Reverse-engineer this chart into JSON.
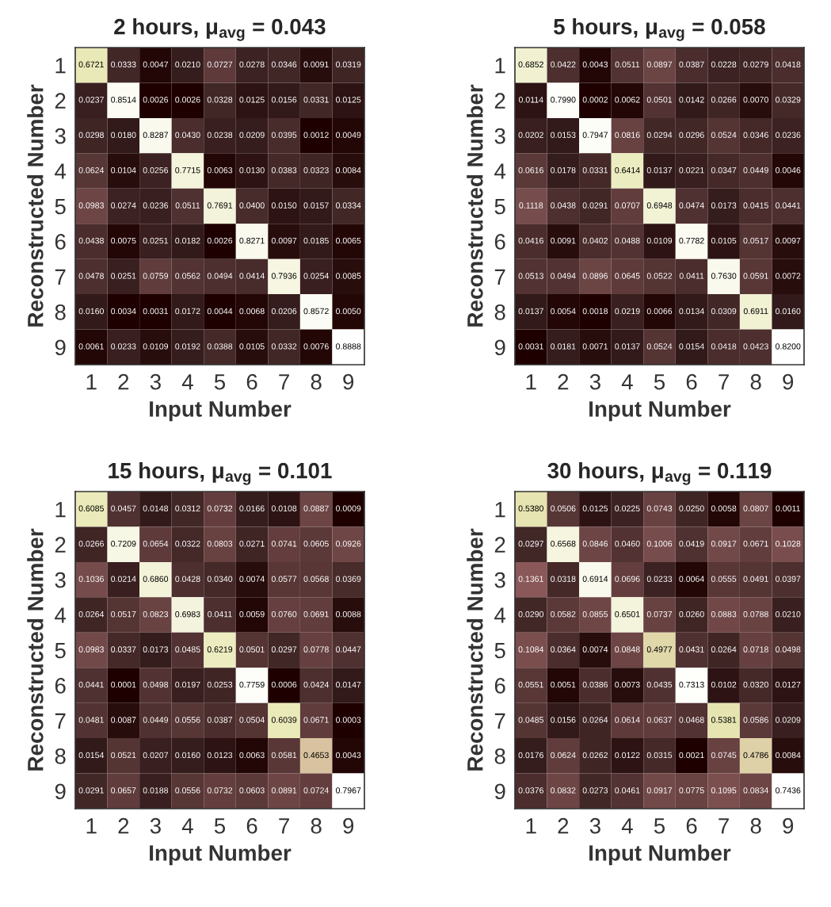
{
  "chart_data": [
    {
      "type": "heatmap",
      "title": "2 hours, μ$_{avg}$ = 0.043",
      "xlabel": "Input Number",
      "ylabel": "Reconstructed Number",
      "categories": [
        "1",
        "2",
        "3",
        "4",
        "5",
        "6",
        "7",
        "8",
        "9"
      ],
      "y_categories": [
        "1",
        "2",
        "3",
        "4",
        "5",
        "6",
        "7",
        "8",
        "9"
      ],
      "data_labels": true,
      "cells": [
        [
          0.6721,
          0.0333,
          0.0047,
          0.021,
          0.0727,
          0.0278,
          0.0346,
          0.0091,
          0.0319
        ],
        [
          0.0237,
          0.8514,
          0.0026,
          0.0026,
          0.0328,
          0.0125,
          0.0156,
          0.0331,
          0.0125
        ],
        [
          0.0298,
          0.018,
          0.8287,
          0.043,
          0.0238,
          0.0209,
          0.0395,
          0.0012,
          0.0049
        ],
        [
          0.0624,
          0.0104,
          0.0256,
          0.7715,
          0.0063,
          0.013,
          0.0383,
          0.0323,
          0.0084
        ],
        [
          0.0983,
          0.0274,
          0.0236,
          0.0511,
          0.7691,
          0.04,
          0.015,
          0.0157,
          0.0334
        ],
        [
          0.0438,
          0.0075,
          0.0251,
          0.0182,
          0.0026,
          0.8271,
          0.0097,
          0.0185,
          0.0065
        ],
        [
          0.0478,
          0.0251,
          0.0759,
          0.0562,
          0.0494,
          0.0414,
          0.7936,
          0.0254,
          0.0085
        ],
        [
          0.016,
          0.0034,
          0.0031,
          0.0172,
          0.0044,
          0.0068,
          0.0206,
          0.8572,
          0.005
        ],
        [
          0.0061,
          0.0233,
          0.0109,
          0.0192,
          0.0388,
          0.0105,
          0.0332,
          0.0076,
          0.8888
        ]
      ],
      "cell_labels": [
        [
          "0.6721",
          "0.0333",
          "0.0047",
          "0.0210",
          "0.0727",
          "0.0278",
          "0.0346",
          "0.0091",
          "0.0319"
        ],
        [
          "0.0237",
          "0.8514",
          "0.0026",
          "0.0026",
          "0.0328",
          "0.0125",
          "0.0156",
          "0.0331",
          "0.0125"
        ],
        [
          "0.0298",
          "0.0180",
          "0.8287",
          "0.0430",
          "0.0238",
          "0.0209",
          "0.0395",
          "0.0012",
          "0.0049"
        ],
        [
          "0.0624",
          "0.0104",
          "0.0256",
          "0.7715",
          "0.0063",
          "0.0130",
          "0.0383",
          "0.0323",
          "0.0084"
        ],
        [
          "0.0983",
          "0.0274",
          "0.0236",
          "0.0511",
          "0.7691",
          "0.0400",
          "0.0150",
          "0.0157",
          "0.0334"
        ],
        [
          "0.0438",
          "0.0075",
          "0.0251",
          "0.0182",
          "0.0026",
          "0.8271",
          "0.0097",
          "0.0185",
          "0.0065"
        ],
        [
          "0.0478",
          "0.0251",
          "0.0759",
          "0.0562",
          "0.0494",
          "0.0414",
          "0.7936",
          "0.0254",
          "0.0085"
        ],
        [
          "0.0160",
          "0.0034",
          "0.0031",
          "0.0172",
          "0.0044",
          "0.0068",
          "0.0206",
          "0.8572",
          "0.0050"
        ],
        [
          "0.0061",
          "0.0233",
          "0.0109",
          "0.0192",
          "0.0388",
          "0.0105",
          "0.0332",
          "0.0076",
          "0.8888"
        ]
      ]
    },
    {
      "type": "heatmap",
      "title": "5 hours, μ$_{avg}$ = 0.058",
      "xlabel": "Input Number",
      "ylabel": "Reconstructed Number",
      "categories": [
        "1",
        "2",
        "3",
        "4",
        "5",
        "6",
        "7",
        "8",
        "9"
      ],
      "y_categories": [
        "1",
        "2",
        "3",
        "4",
        "5",
        "6",
        "7",
        "8",
        "9"
      ],
      "data_labels": true,
      "cells": [
        [
          0.6852,
          0.0422,
          0.0043,
          0.0511,
          0.0897,
          0.0387,
          0.0228,
          0.0279,
          0.0418
        ],
        [
          0.0114,
          0.799,
          0.0002,
          0.0062,
          0.0501,
          0.0142,
          0.0266,
          0.007,
          0.0329
        ],
        [
          0.0202,
          0.0153,
          0.7947,
          0.0816,
          0.0294,
          0.0296,
          0.0524,
          0.0346,
          0.0236
        ],
        [
          0.0616,
          0.0178,
          0.0331,
          0.6414,
          0.0137,
          0.0221,
          0.0347,
          0.0449,
          0.0046
        ],
        [
          0.1118,
          0.0438,
          0.0291,
          0.0707,
          0.6948,
          0.0474,
          0.0173,
          0.0415,
          0.0441
        ],
        [
          0.0416,
          0.0091,
          0.0402,
          0.0488,
          0.0109,
          0.7782,
          0.0105,
          0.0517,
          0.0097
        ],
        [
          0.0513,
          0.0494,
          0.0896,
          0.0645,
          0.0522,
          0.0411,
          0.763,
          0.0591,
          0.0072
        ],
        [
          0.0137,
          0.0054,
          0.0018,
          0.0219,
          0.0066,
          0.0134,
          0.0309,
          0.6911,
          0.016
        ],
        [
          0.0031,
          0.0181,
          0.0071,
          0.0137,
          0.0524,
          0.0154,
          0.0418,
          0.0423,
          0.82
        ]
      ],
      "cell_labels": [
        [
          "0.6852",
          "0.0422",
          "0.0043",
          "0.0511",
          "0.0897",
          "0.0387",
          "0.0228",
          "0.0279",
          "0.0418"
        ],
        [
          "0.0114",
          "0.7990",
          "0.0002",
          "0.0062",
          "0.0501",
          "0.0142",
          "0.0266",
          "0.0070",
          "0.0329"
        ],
        [
          "0.0202",
          "0.0153",
          "0.7947",
          "0.0816",
          "0.0294",
          "0.0296",
          "0.0524",
          "0.0346",
          "0.0236"
        ],
        [
          "0.0616",
          "0.0178",
          "0.0331",
          "0.6414",
          "0.0137",
          "0.0221",
          "0.0347",
          "0.0449",
          "0.0046"
        ],
        [
          "0.1118",
          "0.0438",
          "0.0291",
          "0.0707",
          "0.6948",
          "0.0474",
          "0.0173",
          "0.0415",
          "0.0441"
        ],
        [
          "0.0416",
          "0.0091",
          "0.0402",
          "0.0488",
          "0.0109",
          "0.7782",
          "0.0105",
          "0.0517",
          "0.0097"
        ],
        [
          "0.0513",
          "0.0494",
          "0.0896",
          "0.0645",
          "0.0522",
          "0.0411",
          "0.7630",
          "0.0591",
          "0.0072"
        ],
        [
          "0.0137",
          "0.0054",
          "0.0018",
          "0.0219",
          "0.0066",
          "0.0134",
          "0.0309",
          "0.6911",
          "0.0160"
        ],
        [
          "0.0031",
          "0.0181",
          "0.0071",
          "0.0137",
          "0.0524",
          "0.0154",
          "0.0418",
          "0.0423",
          "0.8200"
        ]
      ]
    },
    {
      "type": "heatmap",
      "title": "15 hours, μ$_{avg}$ = 0.101",
      "xlabel": "Input Number",
      "ylabel": "Reconstructed Number",
      "categories": [
        "1",
        "2",
        "3",
        "4",
        "5",
        "6",
        "7",
        "8",
        "9"
      ],
      "y_categories": [
        "1",
        "2",
        "3",
        "4",
        "5",
        "6",
        "7",
        "8",
        "9"
      ],
      "data_labels": true,
      "cells": [
        [
          0.6085,
          0.0457,
          0.0148,
          0.0312,
          0.0732,
          0.0166,
          0.0108,
          0.0887,
          0.0009
        ],
        [
          0.0266,
          0.7209,
          0.0654,
          0.0322,
          0.0803,
          0.0271,
          0.0741,
          0.0605,
          0.0926
        ],
        [
          0.1036,
          0.0214,
          0.686,
          0.0428,
          0.034,
          0.0074,
          0.0577,
          0.0568,
          0.0369
        ],
        [
          0.0264,
          0.0517,
          0.0823,
          0.6983,
          0.0411,
          0.0059,
          0.076,
          0.0691,
          0.0088
        ],
        [
          0.0983,
          0.0337,
          0.0173,
          0.0485,
          0.6219,
          0.0501,
          0.0297,
          0.0778,
          0.0447
        ],
        [
          0.0441,
          0.0001,
          0.0498,
          0.0197,
          0.0253,
          0.7759,
          0.0006,
          0.0424,
          0.0147
        ],
        [
          0.0481,
          0.0087,
          0.0449,
          0.0556,
          0.0387,
          0.0504,
          0.6039,
          0.0671,
          0.0003
        ],
        [
          0.0154,
          0.0521,
          0.0207,
          0.016,
          0.0123,
          0.0063,
          0.0581,
          0.4653,
          0.0043
        ],
        [
          0.0291,
          0.0657,
          0.0188,
          0.0556,
          0.0732,
          0.0603,
          0.0891,
          0.0724,
          0.7967
        ]
      ],
      "cell_labels": [
        [
          "0.6085",
          "0.0457",
          "0.0148",
          "0.0312",
          "0.0732",
          "0.0166",
          "0.0108",
          "0.0887",
          "0.0009"
        ],
        [
          "0.0266",
          "0.7209",
          "0.0654",
          "0.0322",
          "0.0803",
          "0.0271",
          "0.0741",
          "0.0605",
          "0.0926"
        ],
        [
          "0.1036",
          "0.0214",
          "0.6860",
          "0.0428",
          "0.0340",
          "0.0074",
          "0.0577",
          "0.0568",
          "0.0369"
        ],
        [
          "0.0264",
          "0.0517",
          "0.0823",
          "0.6983",
          "0.0411",
          "0.0059",
          "0.0760",
          "0.0691",
          "0.0088"
        ],
        [
          "0.0983",
          "0.0337",
          "0.0173",
          "0.0485",
          "0.6219",
          "0.0501",
          "0.0297",
          "0.0778",
          "0.0447"
        ],
        [
          "0.0441",
          "0.0001",
          "0.0498",
          "0.0197",
          "0.0253",
          "0.7759",
          "0.0006",
          "0.0424",
          "0.0147"
        ],
        [
          "0.0481",
          "0.0087",
          "0.0449",
          "0.0556",
          "0.0387",
          "0.0504",
          "0.6039",
          "0.0671",
          "0.0003"
        ],
        [
          "0.0154",
          "0.0521",
          "0.0207",
          "0.0160",
          "0.0123",
          "0.0063",
          "0.0581",
          "0.4653",
          "0.0043"
        ],
        [
          "0.0291",
          "0.0657",
          "0.0188",
          "0.0556",
          "0.0732",
          "0.0603",
          "0.0891",
          "0.0724",
          "0.7967"
        ]
      ]
    },
    {
      "type": "heatmap",
      "title": "30 hours, μ$_{avg}$ = 0.119",
      "xlabel": "Input Number",
      "ylabel": "Reconstructed Number",
      "categories": [
        "1",
        "2",
        "3",
        "4",
        "5",
        "6",
        "7",
        "8",
        "9"
      ],
      "y_categories": [
        "1",
        "2",
        "3",
        "4",
        "5",
        "6",
        "7",
        "8",
        "9"
      ],
      "data_labels": true,
      "cells": [
        [
          0.538,
          0.0506,
          0.0125,
          0.0225,
          0.0743,
          0.025,
          0.0058,
          0.0807,
          0.0011
        ],
        [
          0.0297,
          0.6568,
          0.0846,
          0.046,
          0.1006,
          0.0419,
          0.0917,
          0.0671,
          0.1028
        ],
        [
          0.1361,
          0.0318,
          0.6914,
          0.0696,
          0.0233,
          0.0064,
          0.0555,
          0.0491,
          0.0397
        ],
        [
          0.029,
          0.0582,
          0.0855,
          0.6501,
          0.0737,
          0.026,
          0.0883,
          0.0788,
          0.021
        ],
        [
          0.1084,
          0.0364,
          0.0074,
          0.0848,
          0.4977,
          0.0431,
          0.0264,
          0.0718,
          0.0498
        ],
        [
          0.0551,
          0.0051,
          0.0386,
          0.0073,
          0.0435,
          0.7313,
          0.0102,
          0.032,
          0.0127
        ],
        [
          0.0485,
          0.0156,
          0.0264,
          0.0614,
          0.0637,
          0.0468,
          0.5381,
          0.0586,
          0.0209
        ],
        [
          0.0176,
          0.0624,
          0.0262,
          0.0122,
          0.0315,
          0.0021,
          0.0745,
          0.4786,
          0.0084
        ],
        [
          0.0376,
          0.0832,
          0.0273,
          0.0461,
          0.0917,
          0.0775,
          0.1095,
          0.0834,
          0.7436
        ]
      ],
      "cell_labels": [
        [
          "0.5380",
          "0.0506",
          "0.0125",
          "0.0225",
          "0.0743",
          "0.0250",
          "0.0058",
          "0.0807",
          "0.0011"
        ],
        [
          "0.0297",
          "0.6568",
          "0.0846",
          "0.0460",
          "0.1006",
          "0.0419",
          "0.0917",
          "0.0671",
          "0.1028"
        ],
        [
          "0.1361",
          "0.0318",
          "0.6914",
          "0.0696",
          "0.0233",
          "0.0064",
          "0.0555",
          "0.0491",
          "0.0397"
        ],
        [
          "0.0290",
          "0.0582",
          "0.0855",
          "0.6501",
          "0.0737",
          "0.0260",
          "0.0883",
          "0.0788",
          "0.0210"
        ],
        [
          "0.1084",
          "0.0364",
          "0.0074",
          "0.0848",
          "0.4977",
          "0.0431",
          "0.0264",
          "0.0718",
          "0.0498"
        ],
        [
          "0.0551",
          "0.0051",
          "0.0386",
          "0.0073",
          "0.0435",
          "0.7313",
          "0.0102",
          "0.0320",
          "0.0127"
        ],
        [
          "0.0485",
          "0.0156",
          "0.0264",
          "0.0614",
          "0.0637",
          "0.0468",
          "0.5381",
          "0.0586",
          "0.0209"
        ],
        [
          "0.0176",
          "0.0624",
          "0.0262",
          "0.0122",
          "0.0315",
          "0.0021",
          "0.0745",
          "0.4786",
          "0.0084"
        ],
        [
          "0.0376",
          "0.0832",
          "0.0273",
          "0.0461",
          "0.0917",
          "0.0775",
          "0.1095",
          "0.0834",
          "0.7436"
        ]
      ]
    }
  ]
}
